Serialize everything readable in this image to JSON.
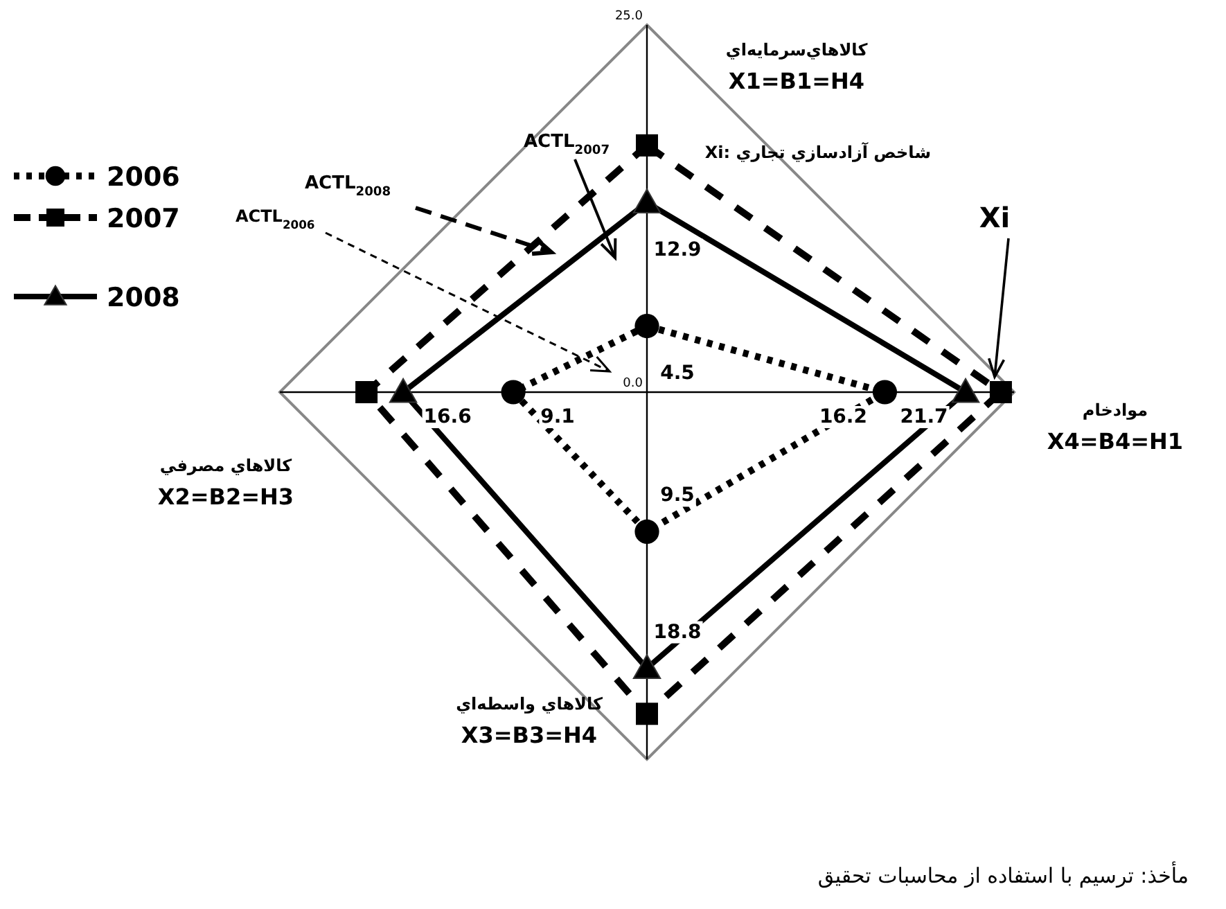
{
  "chart_data": {
    "type": "radar",
    "categories": [
      "کالاهاي‌سرمايه‌اي\nX1=B1=H4",
      "موادخام\nX4=B4=H1",
      "کالاهاي واسطه‌اي\nX3=B3=H4",
      "کالاهاي مصرفي\nX2=B2=H3"
    ],
    "ylim": [
      0,
      25
    ],
    "yticks": [
      {
        "value": 0,
        "label": "0.0"
      },
      {
        "value": 25,
        "label": "25.0"
      }
    ],
    "legend": "left",
    "series": [
      {
        "name": "2006",
        "color": "#000000",
        "marker": "circle",
        "line_style": "dotted",
        "values": [
          4.5,
          16.2,
          9.5,
          9.1
        ],
        "value_labels": [
          "4.5",
          "16.2",
          "9.5",
          "9.1"
        ]
      },
      {
        "name": "2007",
        "color": "#000000",
        "marker": "square",
        "line_style": "dashed",
        "values": [
          16.8,
          24.1,
          21.9,
          19.1
        ]
      },
      {
        "name": "2008",
        "color": "#000000",
        "marker": "triangle",
        "line_style": "solid",
        "values": [
          12.9,
          21.7,
          18.8,
          16.6
        ],
        "value_labels": [
          "12.9",
          "21.7",
          "18.8",
          "16.6"
        ]
      }
    ],
    "annotations": [
      "ACTL$_{2007}$",
      "ACTL$_{2008}$",
      "ACTL$_{2006}$",
      "Xi",
      "Xi: شاخص آزادسازي تجاري",
      "مأخذ: ترسيم با استفاده از محاسبات تحقيق"
    ]
  }
}
